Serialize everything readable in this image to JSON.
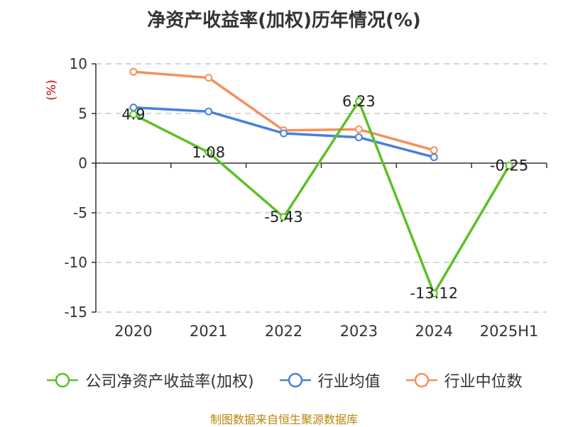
{
  "chart_data": {
    "type": "line",
    "title": "净资产收益率(加权)历年情况(%)",
    "ylabel": "(%)",
    "categories": [
      "2020",
      "2021",
      "2022",
      "2023",
      "2024",
      "2025H1"
    ],
    "ylim": [
      -15,
      10
    ],
    "yticks": [
      10,
      5,
      0,
      -5,
      -10,
      -15
    ],
    "grid": true,
    "legend_position": "bottom",
    "series": [
      {
        "name": "公司净资产收益率(加权)",
        "color": "#5ac125",
        "values": [
          4.9,
          1.08,
          -5.43,
          6.23,
          -13.12,
          -0.25
        ],
        "labels": [
          "4.9",
          "1.08",
          "-5.43",
          "6.23",
          "-13.12",
          "-0.25"
        ]
      },
      {
        "name": "行业均值",
        "color": "#4a7fdc",
        "values": [
          5.6,
          5.2,
          3.0,
          2.6,
          0.6,
          null
        ]
      },
      {
        "name": "行业中位数",
        "color": "#f5905c",
        "values": [
          9.2,
          8.6,
          3.3,
          3.4,
          1.3,
          null
        ]
      }
    ]
  },
  "footer": {
    "source": "制图数据来自恒生聚源数据库"
  }
}
